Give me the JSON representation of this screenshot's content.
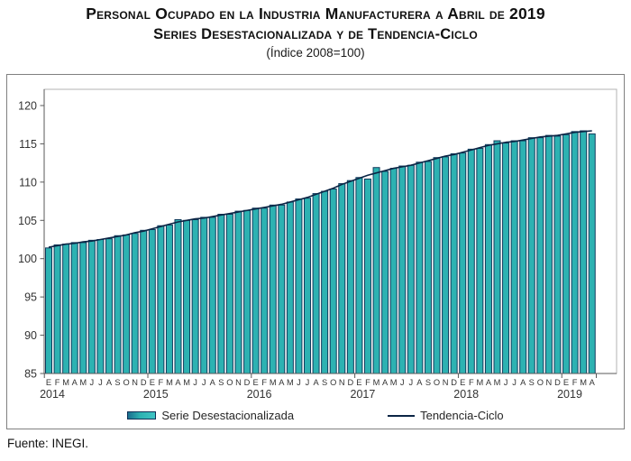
{
  "title": {
    "line1": "Personal Ocupado en la Industria Manufacturera a Abril de 2019",
    "line2": "Series Desestacionalizada y de Tendencia-Ciclo",
    "line3": "(Índice 2008=100)"
  },
  "legend": {
    "series1": "Serie Desestacionalizada",
    "series2": "Tendencia-Ciclo"
  },
  "source": "Fuente:  INEGI.",
  "colors": {
    "bar_fill": "#2db2b2",
    "bar_stroke": "#103a5c",
    "trend_line": "#0b2545",
    "axis_dark": "#595959",
    "plot_border": "#b3b3b3",
    "tick_label": "#333333",
    "month_label": "#333333",
    "year_label": "#333333"
  },
  "chart_data": {
    "type": "bar",
    "title": "Personal ocupado en la industria manufacturera a abril de 2019",
    "subtitle": "Series desestacionalizada y de tendencia-ciclo (Índice 2008=100)",
    "ylim": [
      85,
      120
    ],
    "yticks": [
      85,
      90,
      95,
      100,
      105,
      110,
      115,
      120
    ],
    "grid": false,
    "legend_position": "bottom",
    "years": [
      {
        "label": "2014",
        "months": "EFMAMJJASOND"
      },
      {
        "label": "2015",
        "months": "EFMAMJJASOND"
      },
      {
        "label": "2016",
        "months": "EFMAMJJASOND"
      },
      {
        "label": "2017",
        "months": "EFMAMJJASOND"
      },
      {
        "label": "2018",
        "months": "EFMAMJJASOND"
      },
      {
        "label": "2019",
        "months": "EFMA"
      }
    ],
    "series": [
      {
        "name": "Serie Desestacionalizada",
        "type": "bar",
        "values": [
          101.4,
          101.8,
          101.9,
          102.1,
          102.1,
          102.4,
          102.5,
          102.6,
          103.0,
          103.1,
          103.3,
          103.7,
          103.8,
          104.3,
          104.4,
          105.1,
          105.0,
          105.1,
          105.4,
          105.4,
          105.8,
          105.8,
          106.2,
          106.3,
          106.6,
          106.6,
          107.0,
          107.0,
          107.4,
          107.8,
          107.9,
          108.5,
          108.8,
          109.1,
          109.8,
          110.2,
          110.6,
          110.4,
          111.9,
          111.4,
          111.8,
          112.1,
          112.2,
          112.6,
          112.7,
          113.2,
          113.3,
          113.7,
          113.8,
          114.3,
          114.4,
          114.9,
          115.4,
          115.1,
          115.4,
          115.4,
          115.8,
          115.8,
          116.1,
          116.0,
          116.2,
          116.6,
          116.7,
          116.3
        ]
      },
      {
        "name": "Tendencia-Ciclo",
        "type": "line",
        "values": [
          101.5,
          101.7,
          101.9,
          102.0,
          102.2,
          102.3,
          102.5,
          102.7,
          102.9,
          103.1,
          103.4,
          103.6,
          103.9,
          104.2,
          104.5,
          104.8,
          105.0,
          105.2,
          105.3,
          105.5,
          105.7,
          105.9,
          106.1,
          106.3,
          106.5,
          106.7,
          106.9,
          107.1,
          107.4,
          107.7,
          108.0,
          108.4,
          108.8,
          109.2,
          109.7,
          110.1,
          110.5,
          110.9,
          111.2,
          111.5,
          111.8,
          112.0,
          112.2,
          112.5,
          112.8,
          113.1,
          113.4,
          113.6,
          113.9,
          114.2,
          114.5,
          114.8,
          115.0,
          115.2,
          115.3,
          115.5,
          115.7,
          115.9,
          116.0,
          116.1,
          116.3,
          116.5,
          116.6,
          116.7
        ]
      }
    ]
  }
}
